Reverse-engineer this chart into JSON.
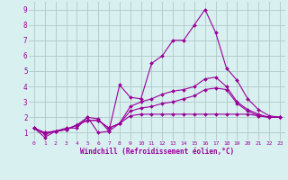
{
  "xlabel": "Windchill (Refroidissement éolien,°C)",
  "bg_color": "#d8f0f0",
  "grid_color": "#b0c8c8",
  "line_color": "#990099",
  "x_ticks": [
    0,
    1,
    2,
    3,
    4,
    5,
    6,
    7,
    8,
    9,
    10,
    11,
    12,
    13,
    14,
    15,
    16,
    17,
    18,
    19,
    20,
    21,
    22,
    23
  ],
  "y_ticks": [
    1,
    2,
    3,
    4,
    5,
    6,
    7,
    8,
    9
  ],
  "xlim": [
    -0.5,
    23.5
  ],
  "ylim": [
    0.5,
    9.5
  ],
  "series": [
    [
      1.3,
      0.7,
      1.1,
      1.3,
      1.3,
      2.0,
      1.0,
      1.1,
      4.1,
      3.3,
      3.2,
      5.5,
      6.0,
      7.0,
      7.0,
      8.0,
      9.0,
      7.5,
      5.2,
      4.4,
      3.2,
      2.5,
      2.1,
      2.0
    ],
    [
      1.3,
      0.9,
      1.1,
      1.2,
      1.5,
      2.0,
      1.9,
      1.1,
      1.6,
      2.7,
      3.0,
      3.2,
      3.5,
      3.7,
      3.8,
      4.0,
      4.5,
      4.6,
      4.0,
      3.0,
      2.5,
      2.2,
      2.0,
      2.0
    ],
    [
      1.3,
      1.0,
      1.1,
      1.2,
      1.5,
      1.8,
      1.8,
      1.3,
      1.6,
      2.4,
      2.6,
      2.7,
      2.9,
      3.0,
      3.2,
      3.4,
      3.8,
      3.9,
      3.8,
      2.9,
      2.4,
      2.1,
      2.0,
      2.0
    ],
    [
      1.3,
      1.0,
      1.1,
      1.2,
      1.5,
      1.8,
      1.8,
      1.3,
      1.6,
      2.1,
      2.2,
      2.2,
      2.2,
      2.2,
      2.2,
      2.2,
      2.2,
      2.2,
      2.2,
      2.2,
      2.2,
      2.1,
      2.0,
      2.0
    ]
  ]
}
